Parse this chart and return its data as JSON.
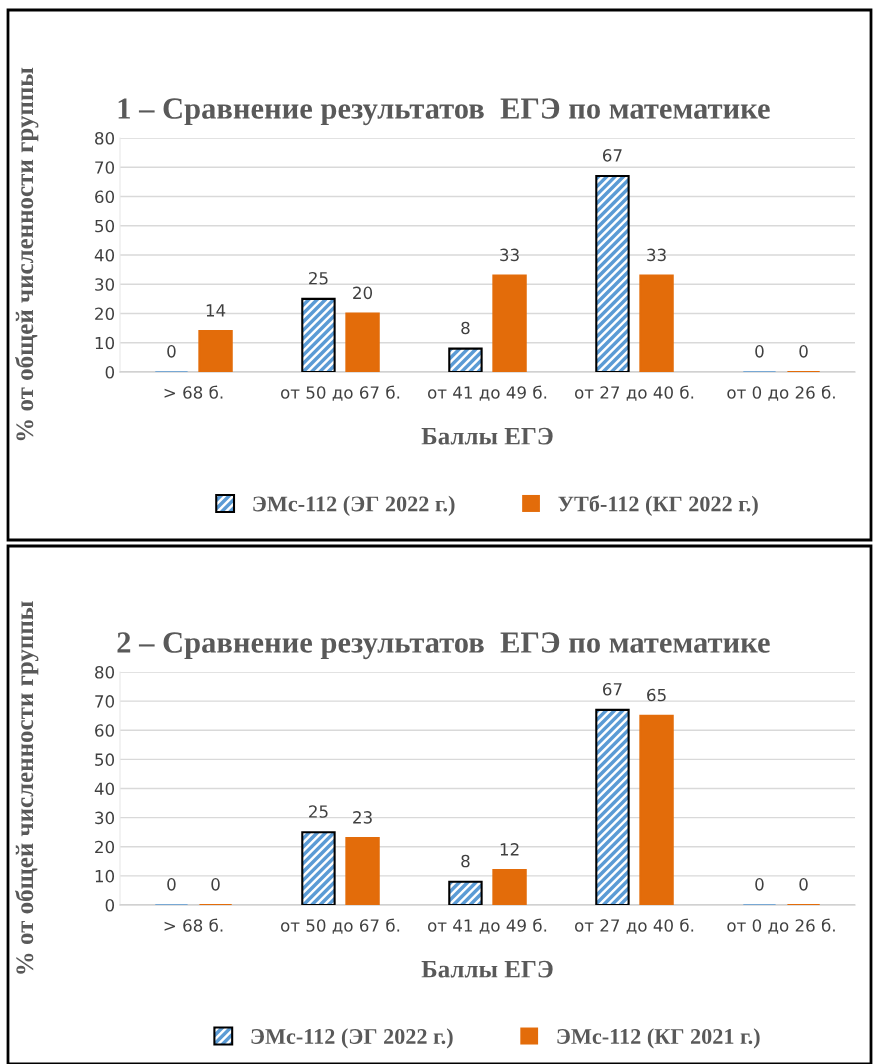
{
  "chart_data": [
    {
      "type": "bar",
      "title": "1 – Сравнение результатов  ЕГЭ по математике",
      "xlabel": "Баллы ЕГЭ",
      "ylabel": "% от общей численности группы",
      "categories": [
        "> 68 б.",
        "от 50 до 67 б.",
        "от 41 до 49 б.",
        "от 27 до 40 б.",
        "от 0 до 26 б."
      ],
      "series": [
        {
          "name": "ЭМс-112 (ЭГ 2022 г.)",
          "color": "#5b9bd5",
          "values": [
            0,
            25,
            8,
            67,
            0
          ]
        },
        {
          "name": "УТб-112 (КГ 2022 г.)",
          "color": "#e36c0a",
          "values": [
            14,
            20,
            33,
            33,
            0
          ]
        }
      ],
      "ylim": [
        0,
        80
      ],
      "yticks": [
        0,
        10,
        20,
        30,
        40,
        50,
        60,
        70,
        80
      ],
      "grid": "y",
      "legend": "bottom",
      "data_labels": true
    },
    {
      "type": "bar",
      "title": "2 – Сравнение результатов  ЕГЭ по математике",
      "xlabel": "Баллы ЕГЭ",
      "ylabel": "% от общей численности группы",
      "categories": [
        "> 68 б.",
        "от 50 до 67 б.",
        "от 41 до 49 б.",
        "от 27 до 40 б.",
        "от 0 до 26 б."
      ],
      "series": [
        {
          "name": "ЭМс-112 (ЭГ 2022 г.)",
          "color": "#5b9bd5",
          "values": [
            0,
            25,
            8,
            67,
            0
          ]
        },
        {
          "name": "ЭМс-112 (КГ 2021 г.)",
          "color": "#e36c0a",
          "values": [
            0,
            23,
            12,
            65,
            0
          ]
        }
      ],
      "ylim": [
        0,
        80
      ],
      "yticks": [
        0,
        10,
        20,
        30,
        40,
        50,
        60,
        70,
        80
      ],
      "grid": "y",
      "legend": "bottom",
      "data_labels": true
    }
  ]
}
